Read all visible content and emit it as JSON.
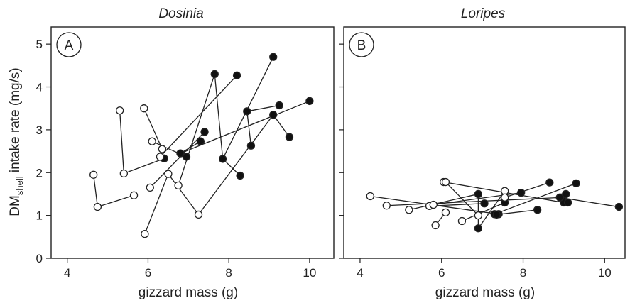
{
  "figure": {
    "y_label_main": "DM",
    "y_label_sub": "shell",
    "y_label_rest": " intake rate (mg/s)"
  },
  "colors": {
    "open": "#ffffff",
    "filled": "#111111",
    "stroke": "#222222"
  },
  "chart_data": [
    {
      "type": "scatter",
      "title": "Dosinia",
      "panel_label": "A",
      "xlabel": "gizzard mass (g)",
      "ylabel": "DMshell intake rate (mg/s)",
      "xlim": [
        3.6,
        10.6
      ],
      "ylim": [
        0,
        5.4
      ],
      "xticks": [
        4,
        6,
        8,
        10
      ],
      "yticks": [
        0,
        1,
        2,
        3,
        4,
        5
      ],
      "grid": false,
      "connected_pairs": [
        [
          {
            "x": 4.65,
            "y": 1.95,
            "fill": "open"
          },
          {
            "x": 4.75,
            "y": 1.2,
            "fill": "open"
          }
        ],
        [
          {
            "x": 5.3,
            "y": 3.45,
            "fill": "open"
          },
          {
            "x": 5.4,
            "y": 1.98,
            "fill": "open"
          }
        ],
        [
          {
            "x": 5.9,
            "y": 3.5,
            "fill": "open"
          },
          {
            "x": 6.35,
            "y": 2.55,
            "fill": "open"
          }
        ],
        [
          {
            "x": 5.92,
            "y": 0.57,
            "fill": "open"
          },
          {
            "x": 6.5,
            "y": 1.97,
            "fill": "open"
          }
        ],
        [
          {
            "x": 4.75,
            "y": 1.2,
            "fill": "open"
          },
          {
            "x": 5.65,
            "y": 1.47,
            "fill": "open"
          }
        ],
        [
          {
            "x": 6.1,
            "y": 2.73,
            "fill": "open"
          },
          {
            "x": 6.95,
            "y": 2.37,
            "fill": "filled"
          }
        ],
        [
          {
            "x": 6.05,
            "y": 1.65,
            "fill": "open"
          },
          {
            "x": 7.4,
            "y": 2.95,
            "fill": "filled"
          }
        ],
        [
          {
            "x": 6.75,
            "y": 1.7,
            "fill": "open"
          },
          {
            "x": 7.65,
            "y": 4.3,
            "fill": "filled"
          }
        ],
        [
          {
            "x": 5.4,
            "y": 1.98,
            "fill": "open"
          },
          {
            "x": 6.4,
            "y": 2.33,
            "fill": "filled"
          }
        ],
        [
          {
            "x": 6.8,
            "y": 2.45,
            "fill": "filled"
          },
          {
            "x": 7.3,
            "y": 2.73,
            "fill": "filled"
          }
        ],
        [
          {
            "x": 6.3,
            "y": 2.37,
            "fill": "open"
          },
          {
            "x": 8.2,
            "y": 4.27,
            "fill": "filled"
          }
        ],
        [
          {
            "x": 7.25,
            "y": 1.02,
            "fill": "open"
          },
          {
            "x": 9.1,
            "y": 3.35,
            "fill": "filled"
          }
        ],
        [
          {
            "x": 6.8,
            "y": 2.45,
            "fill": "filled"
          },
          {
            "x": 10.0,
            "y": 3.67,
            "fill": "filled"
          }
        ],
        [
          {
            "x": 7.85,
            "y": 2.32,
            "fill": "filled"
          },
          {
            "x": 9.1,
            "y": 4.7,
            "fill": "filled"
          }
        ],
        [
          {
            "x": 8.45,
            "y": 3.43,
            "fill": "filled"
          },
          {
            "x": 9.25,
            "y": 3.57,
            "fill": "filled"
          }
        ],
        [
          {
            "x": 8.55,
            "y": 2.63,
            "fill": "filled"
          },
          {
            "x": 8.45,
            "y": 3.43,
            "fill": "filled"
          }
        ],
        [
          {
            "x": 9.1,
            "y": 3.35,
            "fill": "filled"
          },
          {
            "x": 9.5,
            "y": 2.83,
            "fill": "filled"
          }
        ],
        [
          {
            "x": 7.65,
            "y": 4.3,
            "fill": "filled"
          },
          {
            "x": 7.85,
            "y": 2.32,
            "fill": "filled"
          }
        ],
        [
          {
            "x": 7.85,
            "y": 2.32,
            "fill": "filled"
          },
          {
            "x": 8.28,
            "y": 1.93,
            "fill": "filled"
          }
        ],
        [
          {
            "x": 6.5,
            "y": 1.97,
            "fill": "open"
          },
          {
            "x": 7.25,
            "y": 1.02,
            "fill": "open"
          }
        ]
      ]
    },
    {
      "type": "scatter",
      "title": "Loripes",
      "panel_label": "B",
      "xlabel": "gizzard mass (g)",
      "ylabel": "",
      "xlim": [
        3.6,
        10.5
      ],
      "ylim": [
        0,
        5.4
      ],
      "xticks": [
        4,
        6,
        8,
        10
      ],
      "yticks": [
        0,
        1,
        2,
        3,
        4,
        5
      ],
      "grid": false,
      "connected_pairs": [
        [
          {
            "x": 4.25,
            "y": 1.45,
            "fill": "open"
          },
          {
            "x": 7.4,
            "y": 1.03,
            "fill": "filled"
          }
        ],
        [
          {
            "x": 4.65,
            "y": 1.23,
            "fill": "open"
          },
          {
            "x": 8.95,
            "y": 1.42,
            "fill": "filled"
          }
        ],
        [
          {
            "x": 5.2,
            "y": 1.13,
            "fill": "open"
          },
          {
            "x": 6.9,
            "y": 1.5,
            "fill": "filled"
          }
        ],
        [
          {
            "x": 5.7,
            "y": 1.22,
            "fill": "open"
          },
          {
            "x": 7.05,
            "y": 1.28,
            "fill": "filled"
          }
        ],
        [
          {
            "x": 5.8,
            "y": 1.25,
            "fill": "open"
          },
          {
            "x": 7.95,
            "y": 1.53,
            "fill": "filled"
          }
        ],
        [
          {
            "x": 5.85,
            "y": 0.77,
            "fill": "open"
          },
          {
            "x": 6.1,
            "y": 1.07,
            "fill": "open"
          }
        ],
        [
          {
            "x": 6.05,
            "y": 1.78,
            "fill": "open"
          },
          {
            "x": 9.0,
            "y": 1.3,
            "fill": "filled"
          }
        ],
        [
          {
            "x": 6.1,
            "y": 1.78,
            "fill": "open"
          },
          {
            "x": 6.9,
            "y": 1.0,
            "fill": "open"
          }
        ],
        [
          {
            "x": 6.5,
            "y": 0.87,
            "fill": "open"
          },
          {
            "x": 7.55,
            "y": 1.3,
            "fill": "filled"
          }
        ],
        [
          {
            "x": 6.9,
            "y": 0.7,
            "fill": "filled"
          },
          {
            "x": 7.55,
            "y": 1.57,
            "fill": "open"
          }
        ],
        [
          {
            "x": 7.3,
            "y": 1.03,
            "fill": "filled"
          },
          {
            "x": 9.3,
            "y": 1.75,
            "fill": "filled"
          }
        ],
        [
          {
            "x": 7.55,
            "y": 1.42,
            "fill": "open"
          },
          {
            "x": 8.65,
            "y": 1.77,
            "fill": "filled"
          }
        ],
        [
          {
            "x": 7.35,
            "y": 1.02,
            "fill": "filled"
          },
          {
            "x": 8.35,
            "y": 1.13,
            "fill": "filled"
          }
        ],
        [
          {
            "x": 8.9,
            "y": 1.42,
            "fill": "filled"
          },
          {
            "x": 10.35,
            "y": 1.2,
            "fill": "filled"
          }
        ],
        [
          {
            "x": 9.05,
            "y": 1.5,
            "fill": "filled"
          },
          {
            "x": 9.1,
            "y": 1.3,
            "fill": "filled"
          }
        ],
        [
          {
            "x": 6.9,
            "y": 1.5,
            "fill": "filled"
          },
          {
            "x": 6.9,
            "y": 0.7,
            "fill": "filled"
          }
        ]
      ]
    }
  ]
}
